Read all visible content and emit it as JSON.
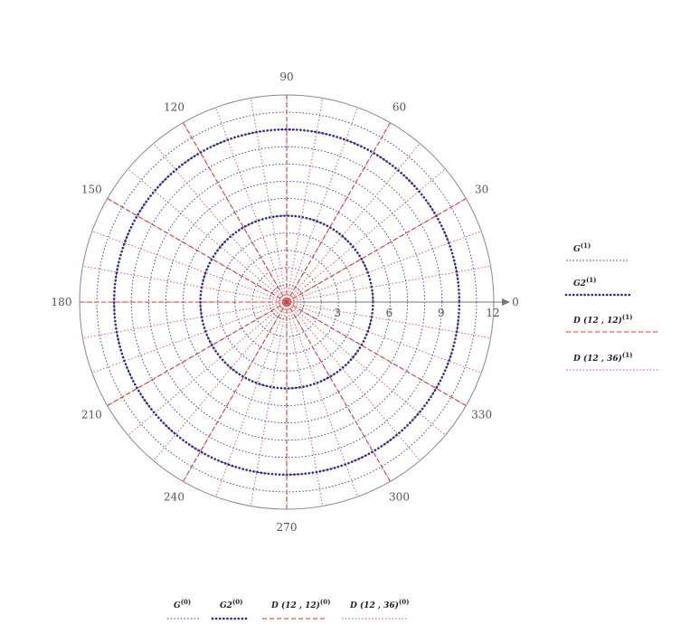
{
  "chart_data": {
    "type": "polar",
    "title": "",
    "grid": true,
    "angular_axis": {
      "direction": "counterclockwise",
      "zero_at": "right",
      "tick_labels": [
        "0",
        "30",
        "60",
        "90",
        "120",
        "150",
        "180",
        "210",
        "240",
        "270",
        "300",
        "330"
      ]
    },
    "radial_axis": {
      "range": [
        0,
        12
      ],
      "tick_values": [
        3,
        6,
        9,
        12
      ],
      "tick_labels": [
        "3",
        "6",
        "9",
        "12"
      ]
    },
    "legend_right": [
      {
        "name": "G",
        "sup": "(1)",
        "style": "dotted",
        "color": "#3333aa"
      },
      {
        "name": "G2",
        "sup": "(1)",
        "style": "bold-dotted",
        "color": "#2b2b8c"
      },
      {
        "name": "D (12 , 12)",
        "sup": "(1)",
        "style": "dashed",
        "color": "#d93a3a"
      },
      {
        "name": "D (12 , 36)",
        "sup": "(1)",
        "style": "dotted",
        "color": "#e05050"
      }
    ],
    "legend_bottom": [
      {
        "name": "G",
        "sup": "(0)",
        "style": "dotted",
        "color": "#3333aa"
      },
      {
        "name": "G2",
        "sup": "(0)",
        "style": "bold-dotted",
        "color": "#2b2b8c"
      },
      {
        "name": "D (12 , 12)",
        "sup": "(0)",
        "style": "dashed",
        "color": "#d93a3a"
      },
      {
        "name": "D (12 , 36)",
        "sup": "(0)",
        "style": "dotted",
        "color": "#e05050"
      }
    ],
    "series": [
      {
        "name": "G",
        "kind": "circles",
        "radii": [
          1,
          2,
          3,
          4,
          5,
          6,
          7,
          8,
          9,
          10,
          11
        ],
        "color": "#3333aa",
        "style": "dotted"
      },
      {
        "name": "G2",
        "kind": "circles",
        "radii": [
          5,
          10
        ],
        "color": "#2b2b8c",
        "style": "bold-dotted"
      },
      {
        "name": "D (12 , 12)",
        "kind": "rays",
        "count": 12,
        "color": "#d93a3a",
        "style": "dashed"
      },
      {
        "name": "D (12 , 36)",
        "kind": "rays",
        "count": 36,
        "color": "#e05050",
        "style": "dotted"
      }
    ]
  }
}
